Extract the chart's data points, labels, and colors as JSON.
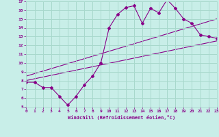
{
  "xlabel": "Windchill (Refroidissement éolien,°C)",
  "bg_color": "#c8eee8",
  "grid_color": "#a8d8cc",
  "line_color": "#880088",
  "xmin": 0,
  "xmax": 23,
  "ymin": 5,
  "ymax": 17,
  "line1_x": [
    0,
    1,
    2,
    3,
    4,
    5,
    6,
    7,
    8,
    9,
    10,
    11,
    12,
    13,
    14,
    15,
    16,
    17,
    18,
    19,
    20,
    21,
    22,
    23
  ],
  "line1_y": [
    7.8,
    7.8,
    7.2,
    7.2,
    6.2,
    5.2,
    6.2,
    7.5,
    8.5,
    10.0,
    14.0,
    15.5,
    16.3,
    16.5,
    14.5,
    16.2,
    15.7,
    17.2,
    16.2,
    15.0,
    14.5,
    13.2,
    13.0,
    12.8
  ],
  "line2_x": [
    0,
    23
  ],
  "line2_y": [
    8.0,
    12.5
  ],
  "line3_x": [
    0,
    23
  ],
  "line3_y": [
    8.5,
    15.0
  ]
}
